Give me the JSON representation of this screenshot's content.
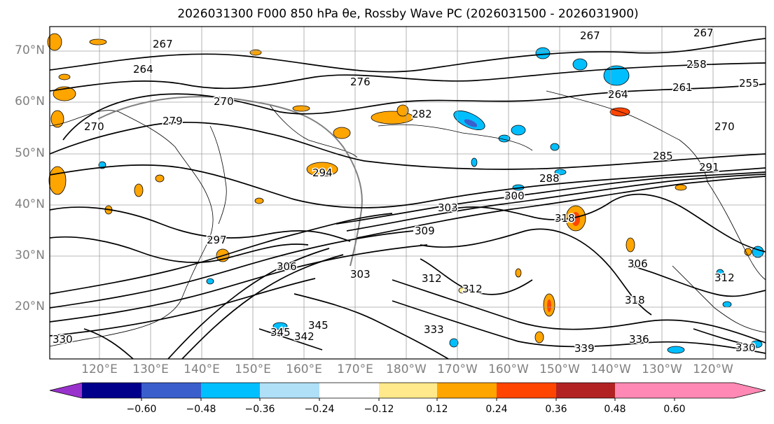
{
  "title": "2026031300 F000 850 hPa θe, Rossby Wave PC (2026031500 - 2026031900)",
  "map": {
    "lat_labels": [
      "70°N",
      "60°N",
      "50°N",
      "40°N",
      "30°N",
      "20°N"
    ],
    "lon_labels": [
      "120°E",
      "130°E",
      "140°E",
      "150°E",
      "160°E",
      "170°E",
      "180°W",
      "170°W",
      "160°W",
      "150°W",
      "140°W",
      "130°W",
      "120°W"
    ],
    "contour_labels": [
      "267",
      "267",
      "258",
      "255",
      "261",
      "264",
      "270",
      "276",
      "279",
      "282",
      "270",
      "264",
      "267",
      "270",
      "294",
      "285",
      "291",
      "288",
      "300",
      "303",
      "309",
      "318",
      "306",
      "297",
      "306",
      "303",
      "312",
      "312",
      "318",
      "342",
      "345",
      "345",
      "333",
      "330",
      "339",
      "336",
      "330",
      "312"
    ]
  },
  "colorbar": {
    "ticks": [
      "−0.60",
      "−0.48",
      "−0.36",
      "−0.24",
      "−0.12",
      "0.12",
      "0.24",
      "0.36",
      "0.48",
      "0.60"
    ],
    "colors": [
      "#9932cc",
      "#00008b",
      "#3a5fcd",
      "#00bfff",
      "#b0e0f8",
      "#ffffff",
      "#ffe98a",
      "#ffa500",
      "#ff4500",
      "#b22222",
      "#ff89b4",
      "#ff89b4"
    ]
  }
}
